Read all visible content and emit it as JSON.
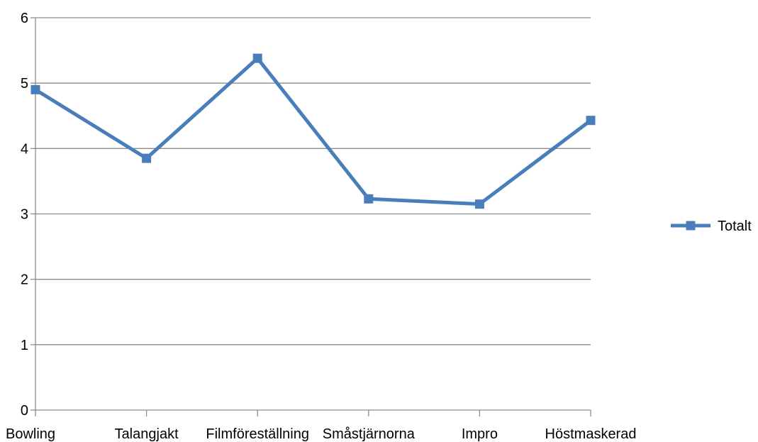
{
  "chart_data": {
    "type": "line",
    "categories": [
      "Bowling",
      "Talangjakt",
      "Filmföreställning",
      "Småstjärnorna",
      "Impro",
      "Höstmaskerad"
    ],
    "series": [
      {
        "name": "Totalt",
        "values": [
          4.9,
          3.85,
          5.38,
          3.23,
          3.15,
          4.43
        ],
        "color": "#4a7ebb"
      }
    ],
    "ylim": [
      0,
      6
    ],
    "yticks": [
      0,
      1,
      2,
      3,
      4,
      5,
      6
    ],
    "grid": true,
    "legend": "right",
    "title": "",
    "xlabel": "",
    "ylabel": ""
  }
}
